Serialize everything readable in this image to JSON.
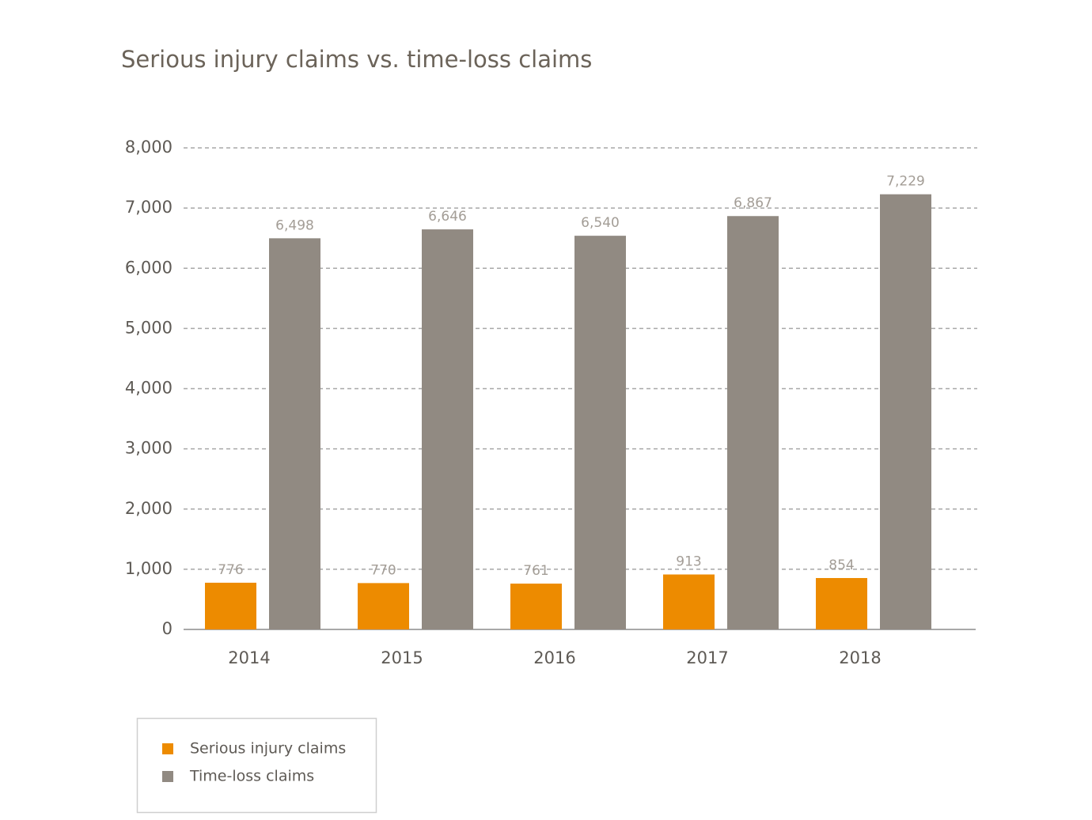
{
  "chart_data": {
    "type": "bar",
    "title": "Serious injury claims vs. time-loss claims",
    "categories": [
      "2014",
      "2015",
      "2016",
      "2017",
      "2018"
    ],
    "series": [
      {
        "name": "Serious injury claims",
        "color": "#ed8b00",
        "values": [
          776,
          770,
          761,
          913,
          854
        ]
      },
      {
        "name": "Time-loss claims",
        "color": "#918a82",
        "values": [
          6498,
          6646,
          6540,
          6867,
          7229
        ],
        "value_labels": [
          "6,498",
          "6,646",
          "6,540",
          "6,867",
          "7,229"
        ]
      }
    ],
    "ylim": [
      0,
      8000
    ],
    "yticks": [
      0,
      {
        "value": 1000,
        "label": "1,000"
      },
      {
        "value": 2000,
        "label": "2,000"
      },
      {
        "value": 3000,
        "label": "3,000"
      },
      {
        "value": 4000,
        "label": "4,000"
      },
      {
        "value": 5000,
        "label": "5,000"
      },
      {
        "value": 6000,
        "label": "6,000"
      },
      {
        "value": 7000,
        "label": "7,000"
      },
      {
        "value": 8000,
        "label": "8,000"
      }
    ],
    "grid": true
  }
}
